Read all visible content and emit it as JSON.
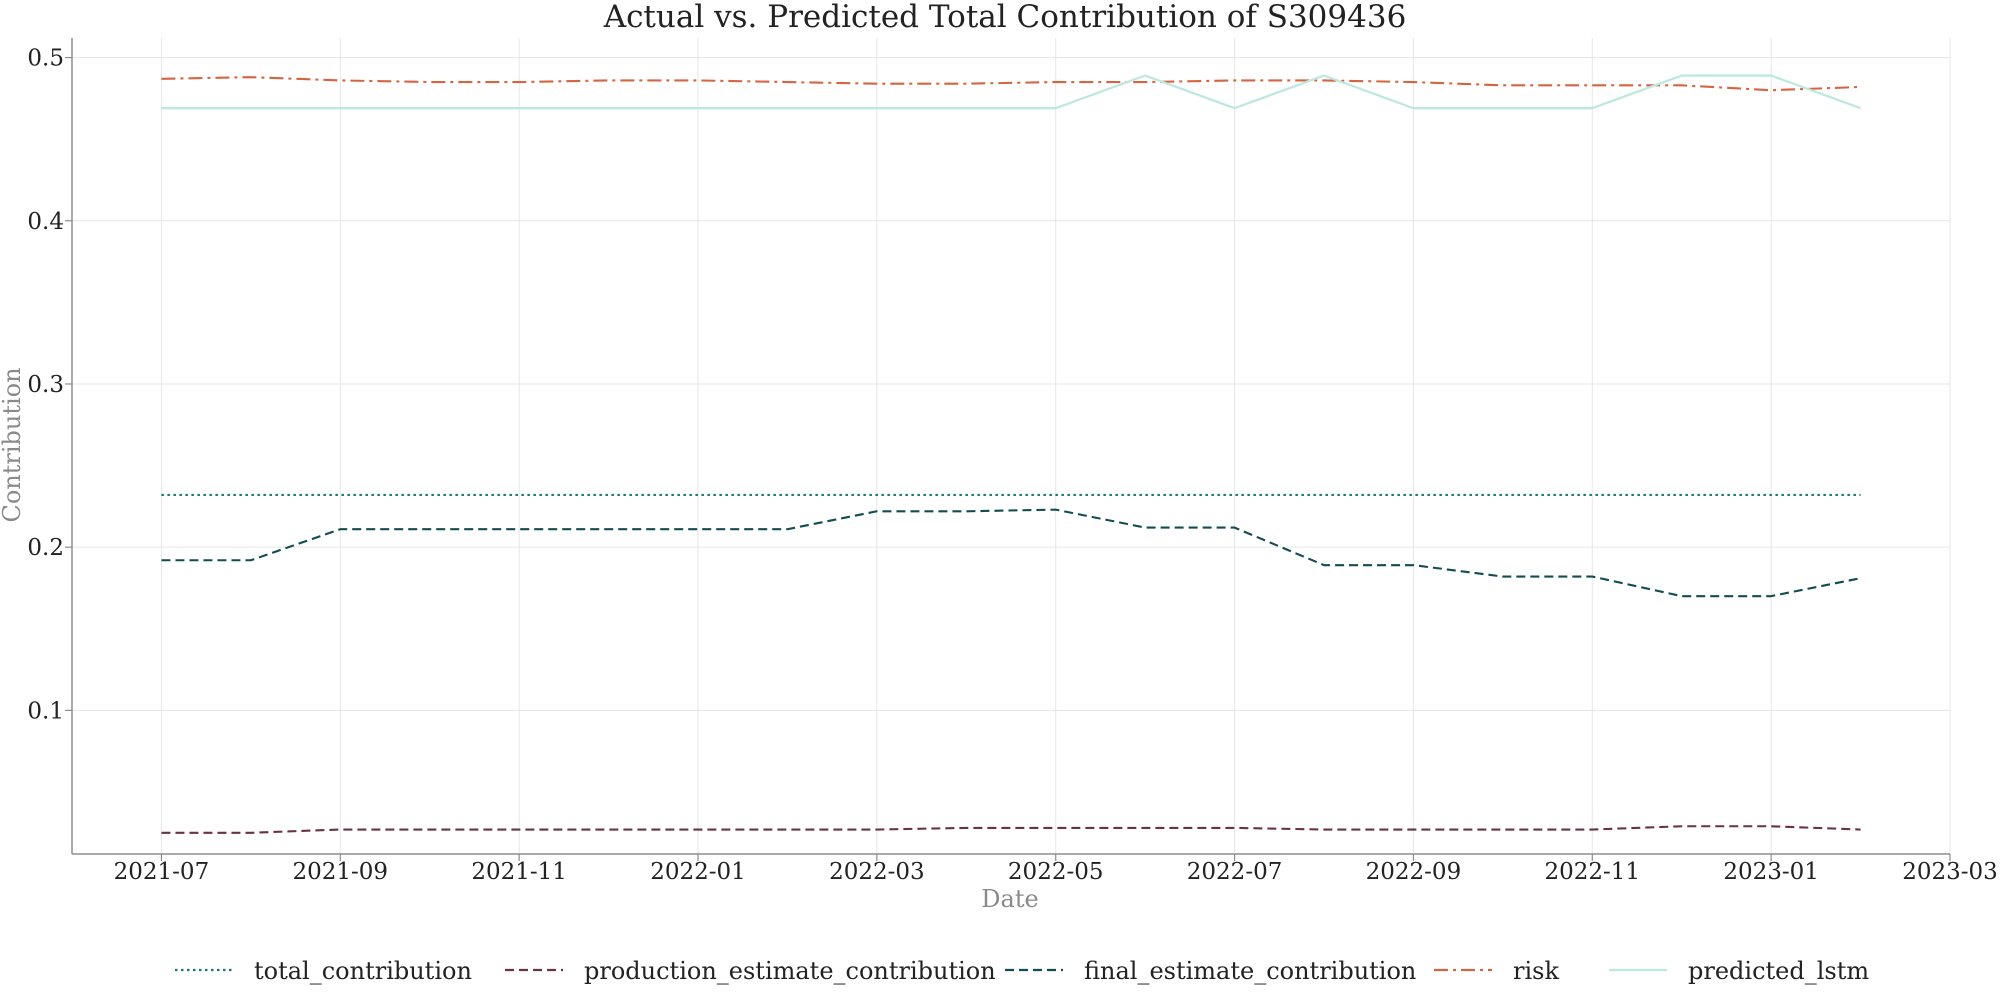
{
  "chart_data": {
    "type": "line",
    "title": "Actual vs. Predicted Total Contribution of S309436",
    "xlabel": "Date",
    "ylabel": "Contribution",
    "x": [
      "2021-07",
      "2021-08",
      "2021-09",
      "2021-10",
      "2021-11",
      "2021-12",
      "2022-01",
      "2022-02",
      "2022-03",
      "2022-04",
      "2022-05",
      "2022-06",
      "2022-07",
      "2022-08",
      "2022-09",
      "2022-10",
      "2022-11",
      "2022-12",
      "2023-01",
      "2023-02"
    ],
    "x_ticks": [
      "2021-07",
      "2021-09",
      "2021-11",
      "2022-01",
      "2022-03",
      "2022-05",
      "2022-07",
      "2022-09",
      "2022-11",
      "2023-01",
      "2023-03"
    ],
    "y_ticks": [
      "0.1",
      "0.2",
      "0.3",
      "0.4",
      "0.5"
    ],
    "xlim": [
      "2021-06",
      "2023-03"
    ],
    "ylim": [
      0.012,
      0.512
    ],
    "grid": true,
    "legend_position": "bottom",
    "series": [
      {
        "name": "total_contribution",
        "color": "#1a7a73",
        "line_style": "dotted",
        "values": [
          0.232,
          0.232,
          0.232,
          0.232,
          0.232,
          0.232,
          0.232,
          0.232,
          0.232,
          0.232,
          0.232,
          0.232,
          0.232,
          0.232,
          0.232,
          0.232,
          0.232,
          0.232,
          0.232,
          0.232
        ]
      },
      {
        "name": "production_estimate_contribution",
        "color": "#6b3242",
        "line_style": "dashed",
        "values": [
          0.025,
          0.025,
          0.027,
          0.027,
          0.027,
          0.027,
          0.027,
          0.027,
          0.027,
          0.028,
          0.028,
          0.028,
          0.028,
          0.027,
          0.027,
          0.027,
          0.027,
          0.029,
          0.029,
          0.027
        ]
      },
      {
        "name": "final_estimate_contribution",
        "color": "#124d52",
        "line_style": "dashed",
        "values": [
          0.192,
          0.192,
          0.211,
          0.211,
          0.211,
          0.211,
          0.211,
          0.211,
          0.222,
          0.222,
          0.223,
          0.212,
          0.212,
          0.189,
          0.189,
          0.182,
          0.182,
          0.17,
          0.17,
          0.181
        ]
      },
      {
        "name": "risk",
        "color": "#d6653f",
        "line_style": "dashdot",
        "values": [
          0.487,
          0.488,
          0.486,
          0.485,
          0.485,
          0.486,
          0.486,
          0.485,
          0.484,
          0.484,
          0.485,
          0.485,
          0.486,
          0.486,
          0.485,
          0.483,
          0.483,
          0.483,
          0.48,
          0.482
        ]
      },
      {
        "name": "predicted_lstm",
        "color": "#bde8e0",
        "line_style": "solid",
        "values": [
          0.469,
          0.469,
          0.469,
          0.469,
          0.469,
          0.469,
          0.469,
          0.469,
          0.469,
          0.469,
          0.469,
          0.489,
          0.469,
          0.489,
          0.469,
          0.469,
          0.469,
          0.489,
          0.489,
          0.469
        ]
      }
    ]
  }
}
